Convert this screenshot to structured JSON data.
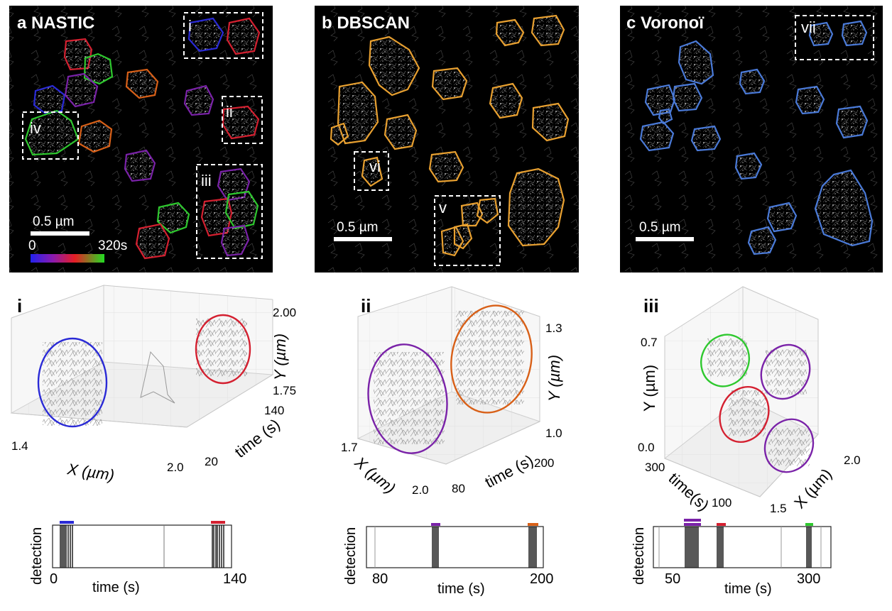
{
  "figure": {
    "top_panels": [
      {
        "letter": "a",
        "title": "a NASTIC",
        "scale_label": "0.5 µm",
        "colorbar": {
          "min": "0",
          "max": "320s"
        },
        "insets": [
          "i",
          "ii",
          "iii",
          "iv"
        ]
      },
      {
        "letter": "b",
        "title": "b DBSCAN",
        "scale_label": "0.5 µm",
        "insets": [
          "vi",
          "v"
        ]
      },
      {
        "letter": "c",
        "title": "c Voronoï",
        "scale_label": "0.5 µm",
        "insets": [
          "vii"
        ]
      }
    ],
    "plots3d": [
      {
        "roman": "i",
        "x_label": "X (µm)",
        "y_label": "Y (µm)",
        "t_label": "time (s)",
        "x_ticks": [
          "1.4",
          "2.0"
        ],
        "y_ticks": [
          "2.00",
          "1.75"
        ],
        "t_ticks": [
          "140",
          "20"
        ]
      },
      {
        "roman": "ii",
        "x_label": "X (µm)",
        "y_label": "Y (µm)",
        "t_label": "time (s)",
        "x_ticks": [
          "1.7",
          "2.0"
        ],
        "y_ticks": [
          "1.3",
          "1.0"
        ],
        "t_ticks": [
          "200",
          "80"
        ]
      },
      {
        "roman": "iii",
        "x_label": "X (µm)",
        "y_label": "Y (µm)",
        "t_label": "time(s)",
        "x_ticks": [
          "2.0",
          "1.5"
        ],
        "y_ticks": [
          "0.7",
          "0.0"
        ],
        "t_ticks": [
          "300",
          "100"
        ]
      }
    ],
    "detection": [
      {
        "ylabel": "detection",
        "xlabel": "time (s)",
        "ticks": [
          "0",
          "140"
        ]
      },
      {
        "ylabel": "detection",
        "xlabel": "time (s)",
        "ticks": [
          "80",
          "200"
        ]
      },
      {
        "ylabel": "detection",
        "xlabel": "time (s)",
        "ticks": [
          "50",
          "300"
        ]
      }
    ],
    "colors": {
      "blue": "#2a2ad6",
      "red": "#d42030",
      "green": "#2ec82e",
      "purple": "#7a22a8",
      "orange": "#d86018",
      "dbscan": "#e8a030",
      "voronoi": "#4a7ad8"
    }
  }
}
